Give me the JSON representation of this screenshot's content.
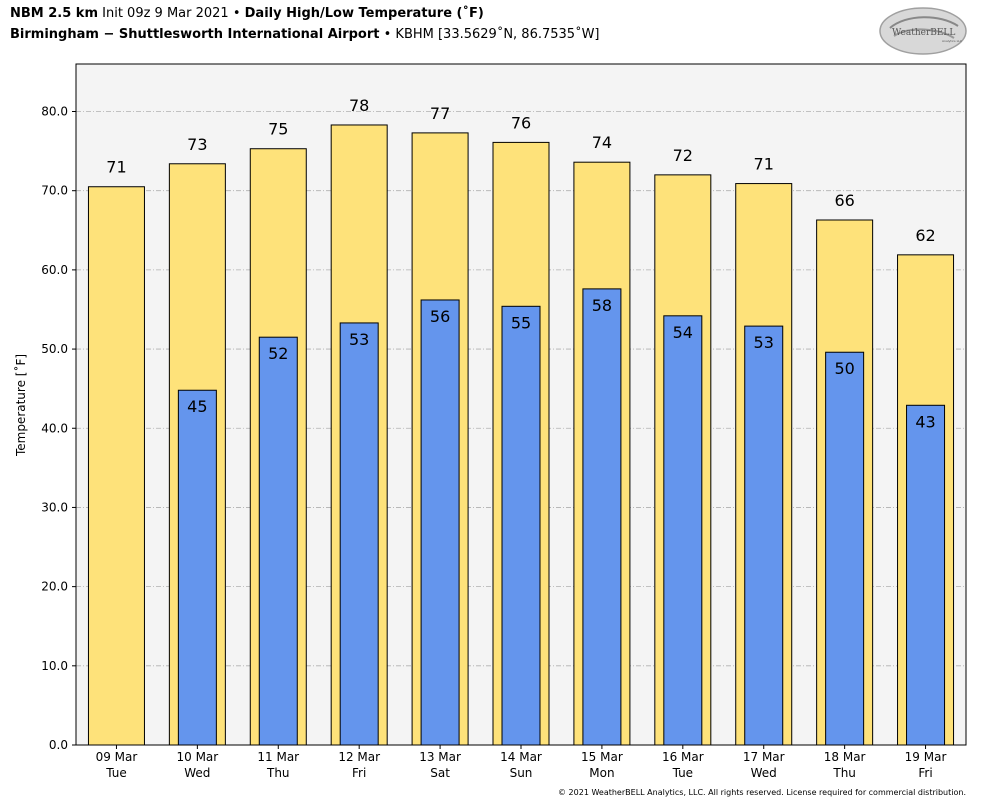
{
  "header": {
    "model": "NBM 2.5 km",
    "init": "Init 09z 9 Mar 2021",
    "product": "Daily High/Low Temperature (˚F)",
    "location": "Birmingham − Shuttlesworth International Airport",
    "station": "KBHM [33.5629˚N, 86.7535˚W]"
  },
  "logo": {
    "text": "WeatherBELL",
    "subtext": "Analytics LLC"
  },
  "footer": "© 2021 WeatherBELL Analytics, LLC. All rights reserved. License required for commercial distribution.",
  "colors": {
    "high": "#FEE27A",
    "low": "#6495ED",
    "plot_background": "#F4F4F4",
    "grid": "#b0b0b0"
  },
  "chart_data": {
    "type": "bar",
    "ylabel": "Temperature [˚F]",
    "ylim": [
      0,
      86
    ],
    "yticks": [
      "0.0",
      "10.0",
      "20.0",
      "30.0",
      "40.0",
      "50.0",
      "60.0",
      "70.0",
      "80.0"
    ],
    "grid": true,
    "categories": [
      "09 Mar",
      "10 Mar",
      "11 Mar",
      "12 Mar",
      "13 Mar",
      "14 Mar",
      "15 Mar",
      "16 Mar",
      "17 Mar",
      "18 Mar",
      "19 Mar"
    ],
    "weekdays": [
      "Tue",
      "Wed",
      "Thu",
      "Fri",
      "Sat",
      "Sun",
      "Mon",
      "Tue",
      "Wed",
      "Thu",
      "Fri"
    ],
    "series": [
      {
        "key": "high",
        "values": [
          70.5,
          73.4,
          75.3,
          78.3,
          77.3,
          76.1,
          73.6,
          72.0,
          70.9,
          66.3,
          61.9
        ],
        "labels": [
          "71",
          "73",
          "75",
          "78",
          "77",
          "76",
          "74",
          "72",
          "71",
          "66",
          "62"
        ]
      },
      {
        "key": "low",
        "values": [
          null,
          44.8,
          51.5,
          53.3,
          56.2,
          55.4,
          57.6,
          54.2,
          52.9,
          49.6,
          42.9
        ],
        "labels": [
          "",
          "45",
          "52",
          "53",
          "56",
          "55",
          "58",
          "54",
          "53",
          "50",
          "43"
        ]
      }
    ]
  }
}
